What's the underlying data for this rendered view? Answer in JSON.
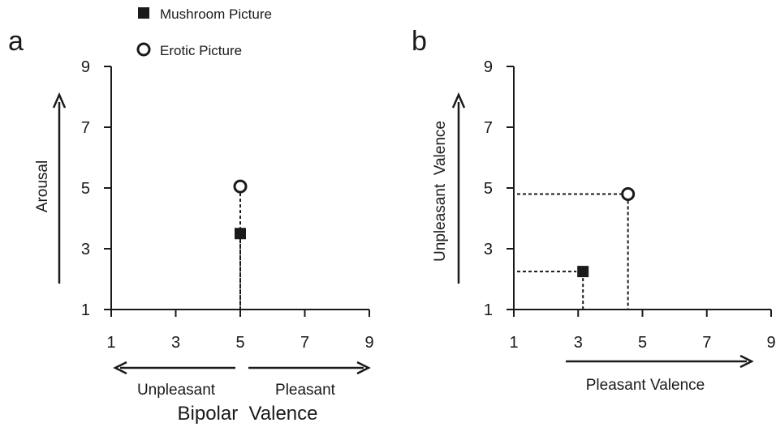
{
  "legend": [
    {
      "label": "Mushroom Picture",
      "marker": "filled-square"
    },
    {
      "label": "Erotic Picture",
      "marker": "open-circle"
    }
  ],
  "colors": {
    "ink": "#1a1a1a",
    "background": "#ffffff"
  },
  "chart_data": [
    {
      "panel": "a",
      "type": "scatter",
      "xticks": [
        1,
        3,
        5,
        7,
        9
      ],
      "yticks": [
        1,
        3,
        5,
        7,
        9
      ],
      "xlim": [
        1,
        9
      ],
      "ylim": [
        1,
        9
      ],
      "ylabel": "Arousal",
      "x_arrow_labels": {
        "left": "Unpleasant",
        "right": "Pleasant"
      },
      "xlabel": "Bipolar  Valence",
      "grid": false,
      "series": [
        {
          "name": "Mushroom Picture",
          "marker": "filled-square",
          "x": 5.0,
          "y": 3.5
        },
        {
          "name": "Erotic Picture",
          "marker": "open-circle",
          "x": 5.0,
          "y": 5.05
        }
      ]
    },
    {
      "panel": "b",
      "type": "scatter",
      "xticks": [
        1,
        3,
        5,
        7,
        9
      ],
      "yticks": [
        1,
        3,
        5,
        7,
        9
      ],
      "xlim": [
        1,
        9
      ],
      "ylim": [
        1,
        9
      ],
      "ylabel": "Unpleasant  Valence",
      "xlabel": "Pleasant Valence",
      "grid": false,
      "series": [
        {
          "name": "Mushroom Picture",
          "marker": "filled-square",
          "x": 3.15,
          "y": 2.25
        },
        {
          "name": "Erotic Picture",
          "marker": "open-circle",
          "x": 4.55,
          "y": 4.8
        }
      ]
    }
  ]
}
